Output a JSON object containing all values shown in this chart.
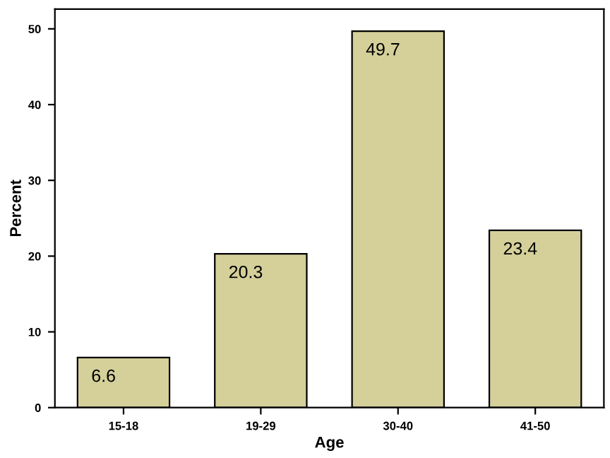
{
  "chart_data": {
    "type": "bar",
    "xlabel": "Age",
    "ylabel": "Percent",
    "categories": [
      "15-18",
      "19-29",
      "30-40",
      "41-50"
    ],
    "values": [
      6.6,
      20.3,
      49.7,
      23.4
    ],
    "color": "#d5d09a",
    "ylim": [
      0,
      52.6
    ],
    "yticks": [
      0,
      10,
      20,
      30,
      40,
      50
    ],
    "grid": false,
    "data_labels": true
  }
}
